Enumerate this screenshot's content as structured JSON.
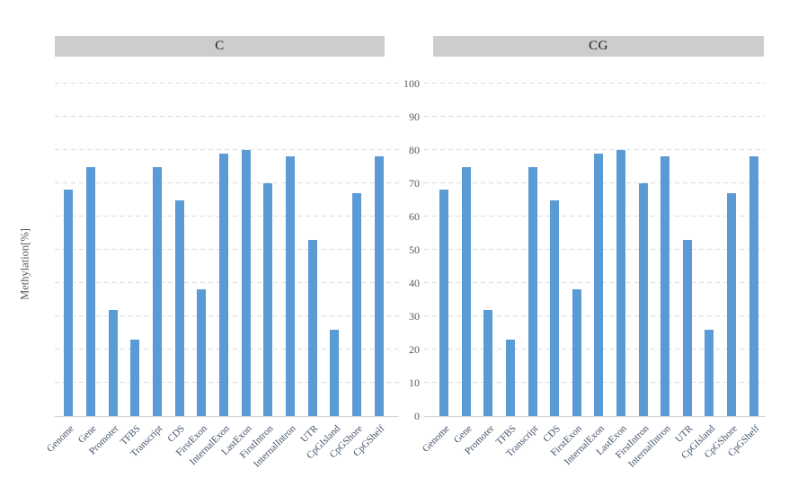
{
  "y_axis": {
    "label": "Methylation[%]",
    "ticks": [
      0,
      10,
      20,
      30,
      40,
      50,
      60,
      70,
      80,
      90,
      100
    ]
  },
  "colors": {
    "bar": "#5B9BD5",
    "panel_header_bg": "#CDCDCD",
    "gridline": "#DCDCDC",
    "axis_line": "#D3D3D3",
    "tick_text": "#595959",
    "category_text": "#44546A"
  },
  "chart_data": [
    {
      "type": "bar",
      "title": "C",
      "categories": [
        "Genome",
        "Gene",
        "Promoter",
        "TFBS",
        "Transcript",
        "CDS",
        "FirstExon",
        "InternalExon",
        "LastExon",
        "FirstIntron",
        "InternalIntron",
        "UTR",
        "CpGIsland",
        "CpGShore",
        "CpGShelf"
      ],
      "values": [
        68,
        75,
        32,
        23,
        75,
        65,
        38,
        79,
        80,
        70,
        78,
        53,
        26,
        67,
        78
      ],
      "xlabel": "",
      "ylabel": "Methylation[%]",
      "ylim": [
        0,
        100
      ],
      "ytick_step": 10,
      "grid": "horizontal-dashed",
      "legend": "none"
    },
    {
      "type": "bar",
      "title": "CG",
      "categories": [
        "Genome",
        "Gene",
        "Promoter",
        "TFBS",
        "Transcript",
        "CDS",
        "FirstExon",
        "InternalExon",
        "LastExon",
        "FirstIntron",
        "InternalIntron",
        "UTR",
        "CpGIsland",
        "CpGShore",
        "CpGShelf"
      ],
      "values": [
        68,
        75,
        32,
        23,
        75,
        65,
        38,
        79,
        80,
        70,
        78,
        53,
        26,
        67,
        78
      ],
      "xlabel": "",
      "ylabel": "Methylation[%]",
      "ylim": [
        0,
        100
      ],
      "ytick_step": 10,
      "grid": "horizontal-dashed",
      "legend": "none"
    }
  ]
}
